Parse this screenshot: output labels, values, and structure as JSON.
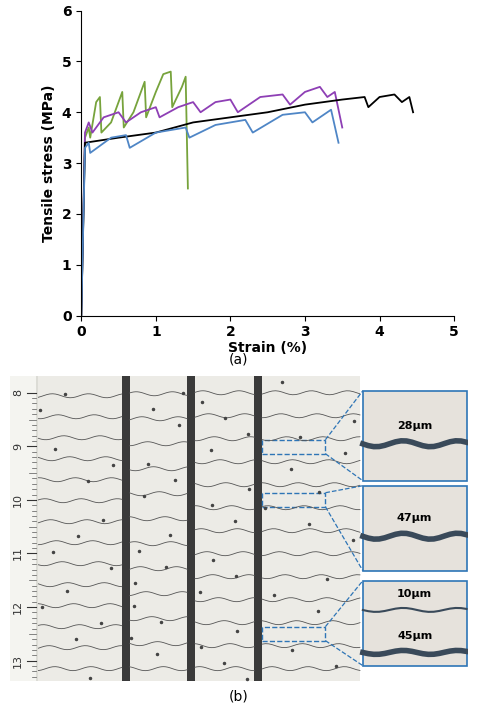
{
  "chart_data": {
    "type": "line",
    "x_label": "Strain (%)",
    "y_label": "Tensile stress (MPa)",
    "xlim": [
      0,
      5
    ],
    "xticks": [
      0,
      1,
      2,
      3,
      4,
      5
    ],
    "ylim": [
      0,
      6
    ],
    "yticks": [
      0,
      1,
      2,
      3,
      4,
      5,
      6
    ],
    "series": [
      {
        "color": "#77a33c",
        "x": [
          0,
          0.05,
          0.1,
          0.12,
          0.2,
          0.25,
          0.27,
          0.4,
          0.5,
          0.55,
          0.57,
          0.7,
          0.8,
          0.85,
          0.87,
          1.0,
          1.1,
          1.2,
          1.22,
          1.35,
          1.4,
          1.43
        ],
        "values": [
          0,
          3.5,
          3.7,
          3.5,
          4.2,
          4.3,
          3.6,
          3.8,
          4.2,
          4.4,
          3.7,
          4.0,
          4.4,
          4.6,
          3.9,
          4.4,
          4.75,
          4.8,
          4.1,
          4.5,
          4.7,
          2.5
        ]
      },
      {
        "color": "#8e3fb5",
        "x": [
          0,
          0.05,
          0.1,
          0.15,
          0.3,
          0.5,
          0.6,
          0.8,
          1.0,
          1.05,
          1.3,
          1.5,
          1.6,
          1.8,
          2.0,
          2.1,
          2.4,
          2.7,
          2.8,
          3.0,
          3.2,
          3.3,
          3.4,
          3.5
        ],
        "values": [
          0,
          3.6,
          3.8,
          3.6,
          3.9,
          4.0,
          3.8,
          4.0,
          4.1,
          3.9,
          4.1,
          4.2,
          4.0,
          4.2,
          4.25,
          4.0,
          4.3,
          4.35,
          4.15,
          4.4,
          4.5,
          4.3,
          4.4,
          3.7
        ]
      },
      {
        "color": "#000000",
        "x": [
          0,
          0.05,
          0.5,
          1.0,
          1.5,
          2.0,
          2.5,
          3.0,
          3.5,
          3.8,
          3.85,
          4.0,
          4.2,
          4.3,
          4.4,
          4.45
        ],
        "values": [
          0,
          3.4,
          3.5,
          3.6,
          3.8,
          3.9,
          4.0,
          4.15,
          4.25,
          4.3,
          4.1,
          4.3,
          4.35,
          4.2,
          4.3,
          4.0
        ]
      },
      {
        "color": "#4f86c6",
        "x": [
          0,
          0.05,
          0.1,
          0.12,
          0.4,
          0.6,
          0.65,
          1.0,
          1.4,
          1.45,
          1.8,
          2.2,
          2.3,
          2.7,
          3.0,
          3.1,
          3.3,
          3.35,
          3.45
        ],
        "values": [
          0,
          3.3,
          3.4,
          3.2,
          3.5,
          3.55,
          3.3,
          3.6,
          3.7,
          3.5,
          3.75,
          3.85,
          3.6,
          3.95,
          4.0,
          3.8,
          4.0,
          4.05,
          3.4
        ]
      }
    ]
  },
  "panel_labels": [
    "(a)",
    "(b)"
  ],
  "photo": {
    "ruler_labels": [
      8,
      9,
      10,
      11,
      12,
      13
    ],
    "insets": [
      {
        "labels": [
          "28µm"
        ]
      },
      {
        "labels": [
          "47µm"
        ]
      },
      {
        "labels": [
          "10µm",
          "45µm"
        ]
      }
    ]
  }
}
